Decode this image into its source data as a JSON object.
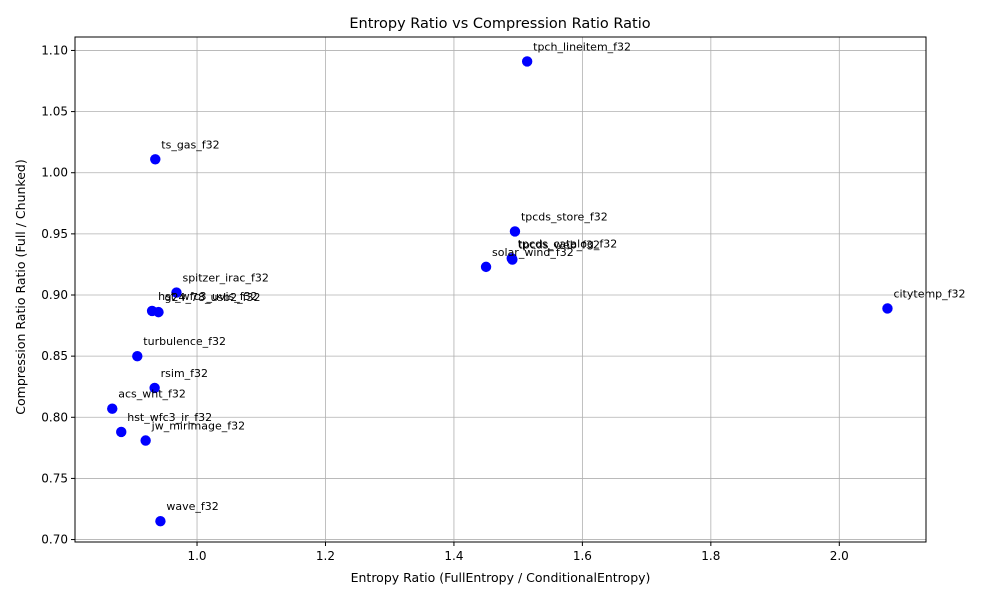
{
  "chart_data": {
    "type": "scatter",
    "title": "Entropy Ratio vs Compression Ratio Ratio",
    "xlabel": "Entropy Ratio (FullEntropy / ConditionalEntropy)",
    "ylabel": "Compression Ratio Ratio (Full / Chunked)",
    "xlim": [
      0.81,
      2.135
    ],
    "ylim": [
      0.698,
      1.111
    ],
    "xticks": [
      1.0,
      1.2,
      1.4,
      1.6,
      1.8,
      2.0
    ],
    "xtick_labels": [
      "1.0",
      "1.2",
      "1.4",
      "1.6",
      "1.8",
      "2.0"
    ],
    "yticks": [
      0.7,
      0.75,
      0.8,
      0.85,
      0.9,
      0.95,
      1.0,
      1.05,
      1.1
    ],
    "ytick_labels": [
      "0.70",
      "0.75",
      "0.80",
      "0.85",
      "0.90",
      "0.95",
      "1.00",
      "1.05",
      "1.10"
    ],
    "grid": true,
    "marker_color": "#0000ff",
    "points": [
      {
        "label": "tpch_lineitem_f32",
        "x": 1.514,
        "y": 1.091
      },
      {
        "label": "ts_gas_f32",
        "x": 0.935,
        "y": 1.011
      },
      {
        "label": "tpcds_store_f32",
        "x": 1.495,
        "y": 0.952
      },
      {
        "label": "tpcds_catalog_f32",
        "x": 1.49,
        "y": 0.93
      },
      {
        "label": "tpcds_web_f32",
        "x": 1.491,
        "y": 0.929
      },
      {
        "label": "solar_wind_f32",
        "x": 1.45,
        "y": 0.923
      },
      {
        "label": "citytemp_f32",
        "x": 2.075,
        "y": 0.889
      },
      {
        "label": "spitzer_irac_f32",
        "x": 0.968,
        "y": 0.902
      },
      {
        "label": "hst_wfc3_uvis_f32",
        "x": 0.93,
        "y": 0.887
      },
      {
        "label": "g24_78_usb2_f32",
        "x": 0.94,
        "y": 0.886
      },
      {
        "label": "turbulence_f32",
        "x": 0.907,
        "y": 0.85
      },
      {
        "label": "rsim_f32",
        "x": 0.934,
        "y": 0.824
      },
      {
        "label": "acs_wht_f32",
        "x": 0.868,
        "y": 0.807
      },
      {
        "label": "hst_wfc3_ir_f32",
        "x": 0.882,
        "y": 0.788
      },
      {
        "label": "jw_mirimage_f32",
        "x": 0.92,
        "y": 0.781
      },
      {
        "label": "wave_f32",
        "x": 0.943,
        "y": 0.715
      }
    ]
  }
}
